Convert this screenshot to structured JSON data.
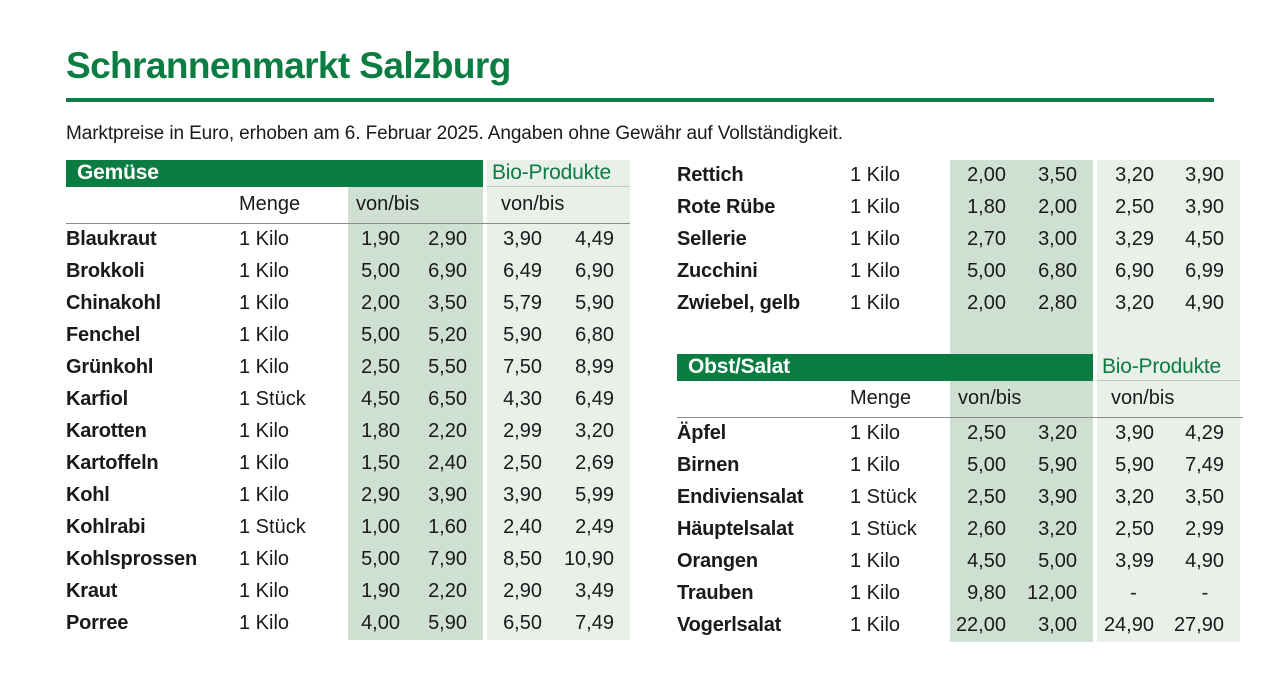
{
  "page": {
    "title": "Schrannenmarkt Salzburg",
    "subtitle": "Marktpreise in Euro, erhoben am 6. Februar 2025. Angaben ohne Gewähr auf Vollständigkeit."
  },
  "labels": {
    "menge": "Menge",
    "von_bis": "von/bis",
    "bio_products": "Bio-Produkte"
  },
  "colors": {
    "accent_green": "#0b7d42",
    "band_sage": "#cfe0d2",
    "band_bio": "#e9efe9",
    "ink": "#1a1a1a",
    "rule_gray": "#8c8c8c",
    "hairline": "#c2c9c2"
  },
  "tables": {
    "gemuese": {
      "title": "Gemüse",
      "rows": [
        {
          "name": "Blaukraut",
          "menge": "1 Kilo",
          "von": "1,90",
          "bis": "2,90",
          "bio_von": "3,90",
          "bio_bis": "4,49"
        },
        {
          "name": "Brokkoli",
          "menge": "1 Kilo",
          "von": "5,00",
          "bis": "6,90",
          "bio_von": "6,49",
          "bio_bis": "6,90"
        },
        {
          "name": "Chinakohl",
          "menge": "1 Kilo",
          "von": "2,00",
          "bis": "3,50",
          "bio_von": "5,79",
          "bio_bis": "5,90"
        },
        {
          "name": "Fenchel",
          "menge": "1 Kilo",
          "von": "5,00",
          "bis": "5,20",
          "bio_von": "5,90",
          "bio_bis": "6,80"
        },
        {
          "name": "Grünkohl",
          "menge": "1 Kilo",
          "von": "2,50",
          "bis": "5,50",
          "bio_von": "7,50",
          "bio_bis": "8,99"
        },
        {
          "name": "Karfiol",
          "menge": "1 Stück",
          "von": "4,50",
          "bis": "6,50",
          "bio_von": "4,30",
          "bio_bis": "6,49"
        },
        {
          "name": "Karotten",
          "menge": "1 Kilo",
          "von": "1,80",
          "bis": "2,20",
          "bio_von": "2,99",
          "bio_bis": "3,20"
        },
        {
          "name": "Kartoffeln",
          "menge": "1 Kilo",
          "von": "1,50",
          "bis": "2,40",
          "bio_von": "2,50",
          "bio_bis": "2,69"
        },
        {
          "name": "Kohl",
          "menge": "1 Kilo",
          "von": "2,90",
          "bis": "3,90",
          "bio_von": "3,90",
          "bio_bis": "5,99"
        },
        {
          "name": "Kohlrabi",
          "menge": "1 Stück",
          "von": "1,00",
          "bis": "1,60",
          "bio_von": "2,40",
          "bio_bis": "2,49"
        },
        {
          "name": "Kohlsprossen",
          "menge": "1 Kilo",
          "von": "5,00",
          "bis": "7,90",
          "bio_von": "8,50",
          "bio_bis": "10,90"
        },
        {
          "name": "Kraut",
          "menge": "1 Kilo",
          "von": "1,90",
          "bis": "2,20",
          "bio_von": "2,90",
          "bio_bis": "3,49"
        },
        {
          "name": "Porree",
          "menge": "1 Kilo",
          "von": "4,00",
          "bis": "5,90",
          "bio_von": "6,50",
          "bio_bis": "7,49"
        }
      ]
    },
    "gemuese_continued": {
      "rows": [
        {
          "name": "Rettich",
          "menge": "1 Kilo",
          "von": "2,00",
          "bis": "3,50",
          "bio_von": "3,20",
          "bio_bis": "3,90"
        },
        {
          "name": "Rote Rübe",
          "menge": "1 Kilo",
          "von": "1,80",
          "bis": "2,00",
          "bio_von": "2,50",
          "bio_bis": "3,90"
        },
        {
          "name": "Sellerie",
          "menge": "1 Kilo",
          "von": "2,70",
          "bis": "3,00",
          "bio_von": "3,29",
          "bio_bis": "4,50"
        },
        {
          "name": "Zucchini",
          "menge": "1 Kilo",
          "von": "5,00",
          "bis": "6,80",
          "bio_von": "6,90",
          "bio_bis": "6,99"
        },
        {
          "name": "Zwiebel, gelb",
          "menge": "1 Kilo",
          "von": "2,00",
          "bis": "2,80",
          "bio_von": "3,20",
          "bio_bis": "4,90"
        }
      ]
    },
    "obst_salat": {
      "title": "Obst/Salat",
      "rows": [
        {
          "name": "Äpfel",
          "menge": "1 Kilo",
          "von": "2,50",
          "bis": "3,20",
          "bio_von": "3,90",
          "bio_bis": "4,29"
        },
        {
          "name": "Birnen",
          "menge": "1 Kilo",
          "von": "5,00",
          "bis": "5,90",
          "bio_von": "5,90",
          "bio_bis": "7,49"
        },
        {
          "name": "Endiviensalat",
          "menge": "1 Stück",
          "von": "2,50",
          "bis": "3,90",
          "bio_von": "3,20",
          "bio_bis": "3,50"
        },
        {
          "name": "Häuptelsalat",
          "menge": "1 Stück",
          "von": "2,60",
          "bis": "3,20",
          "bio_von": "2,50",
          "bio_bis": "2,99"
        },
        {
          "name": "Orangen",
          "menge": "1 Kilo",
          "von": "4,50",
          "bis": "5,00",
          "bio_von": "3,99",
          "bio_bis": "4,90"
        },
        {
          "name": "Trauben",
          "menge": "1 Kilo",
          "von": "9,80",
          "bis": "12,00",
          "bio_von": "-",
          "bio_bis": "-"
        },
        {
          "name": "Vogerlsalat",
          "menge": "1 Kilo",
          "von": "22,00",
          "bis": "3,00",
          "bio_von": "24,90",
          "bio_bis": "27,90"
        }
      ]
    }
  }
}
